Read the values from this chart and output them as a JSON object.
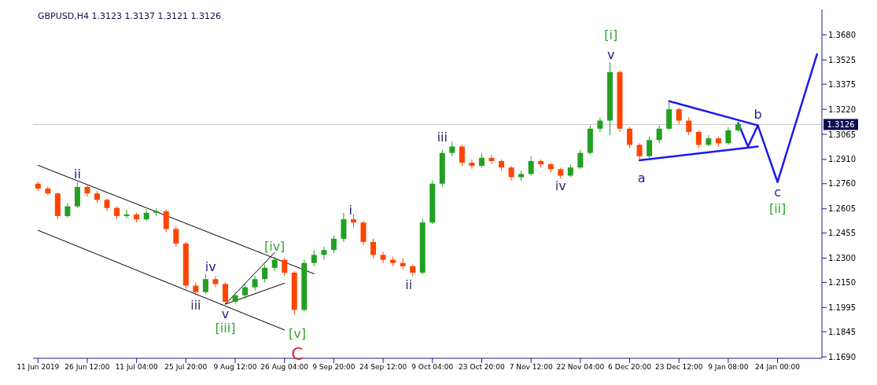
{
  "chart_data": {
    "type": "candlestick",
    "title": "GBPUSD,H4  1.3123 1.3137 1.3121 1.3126",
    "categories": [
      "11 Jun 2019",
      null,
      null,
      null,
      null,
      "26 Jun 12:00",
      null,
      null,
      null,
      null,
      "11 Jul 04:00",
      null,
      null,
      null,
      null,
      "25 Jul 20:00",
      null,
      null,
      null,
      null,
      "9 Aug 12:00",
      null,
      null,
      null,
      null,
      "26 Aug 04:00",
      null,
      null,
      null,
      null,
      "9 Sep 20:00",
      null,
      null,
      null,
      null,
      "24 Sep 12:00",
      null,
      null,
      null,
      null,
      "9 Oct 04:00",
      null,
      null,
      null,
      null,
      "23 Oct 20:00",
      null,
      null,
      null,
      null,
      "7 Nov 12:00",
      null,
      null,
      null,
      null,
      "22 Nov 04:00",
      null,
      null,
      null,
      null,
      "6 Dec 20:00",
      null,
      null,
      null,
      null,
      "23 Dec 12:00",
      null,
      null,
      null,
      null,
      "9 Jan 08:00",
      null,
      null,
      null,
      null,
      "24 Jan 00:00",
      null,
      null,
      null,
      null
    ],
    "ohlc": [
      [
        1.276,
        1.2775,
        1.2715,
        1.273
      ],
      [
        1.273,
        1.2745,
        1.269,
        1.27
      ],
      [
        1.27,
        1.2705,
        1.254,
        1.256
      ],
      [
        1.256,
        1.264,
        1.255,
        1.262
      ],
      [
        1.262,
        1.277,
        1.261,
        1.274
      ],
      [
        1.274,
        1.275,
        1.268,
        1.27
      ],
      [
        1.27,
        1.2715,
        1.264,
        1.266
      ],
      [
        1.266,
        1.267,
        1.259,
        1.261
      ],
      [
        1.261,
        1.262,
        1.254,
        1.256
      ],
      [
        1.256,
        1.26,
        1.2545,
        1.257
      ],
      [
        1.257,
        1.258,
        1.252,
        1.254
      ],
      [
        1.254,
        1.26,
        1.253,
        1.258
      ],
      [
        1.258,
        1.261,
        1.256,
        1.259
      ],
      [
        1.259,
        1.26,
        1.246,
        1.248
      ],
      [
        1.248,
        1.25,
        1.237,
        1.239
      ],
      [
        1.239,
        1.24,
        1.211,
        1.213
      ],
      [
        1.213,
        1.215,
        1.207,
        1.209
      ],
      [
        1.209,
        1.22,
        1.208,
        1.217
      ],
      [
        1.217,
        1.219,
        1.212,
        1.214
      ],
      [
        1.214,
        1.215,
        1.201,
        1.203
      ],
      [
        1.203,
        1.209,
        1.202,
        1.207
      ],
      [
        1.207,
        1.214,
        1.205,
        1.212
      ],
      [
        1.212,
        1.219,
        1.21,
        1.217
      ],
      [
        1.217,
        1.226,
        1.215,
        1.224
      ],
      [
        1.224,
        1.231,
        1.222,
        1.229
      ],
      [
        1.229,
        1.23,
        1.219,
        1.221
      ],
      [
        1.221,
        1.222,
        1.195,
        1.198
      ],
      [
        1.198,
        1.229,
        1.197,
        1.227
      ],
      [
        1.227,
        1.235,
        1.225,
        1.232
      ],
      [
        1.232,
        1.237,
        1.229,
        1.235
      ],
      [
        1.235,
        1.244,
        1.233,
        1.242
      ],
      [
        1.242,
        1.258,
        1.24,
        1.254
      ],
      [
        1.254,
        1.257,
        1.249,
        1.252
      ],
      [
        1.252,
        1.253,
        1.238,
        1.24
      ],
      [
        1.24,
        1.242,
        1.23,
        1.232
      ],
      [
        1.232,
        1.234,
        1.227,
        1.229
      ],
      [
        1.229,
        1.231,
        1.225,
        1.227
      ],
      [
        1.227,
        1.23,
        1.223,
        1.225
      ],
      [
        1.225,
        1.226,
        1.219,
        1.221
      ],
      [
        1.221,
        1.254,
        1.22,
        1.252
      ],
      [
        1.252,
        1.278,
        1.251,
        1.276
      ],
      [
        1.276,
        1.297,
        1.274,
        1.295
      ],
      [
        1.295,
        1.302,
        1.293,
        1.299
      ],
      [
        1.299,
        1.3,
        1.287,
        1.289
      ],
      [
        1.289,
        1.291,
        1.285,
        1.287
      ],
      [
        1.287,
        1.295,
        1.286,
        1.292
      ],
      [
        1.292,
        1.294,
        1.288,
        1.29
      ],
      [
        1.29,
        1.291,
        1.284,
        1.286
      ],
      [
        1.286,
        1.287,
        1.278,
        1.28
      ],
      [
        1.28,
        1.284,
        1.278,
        1.282
      ],
      [
        1.282,
        1.293,
        1.281,
        1.29
      ],
      [
        1.29,
        1.291,
        1.286,
        1.288
      ],
      [
        1.288,
        1.289,
        1.283,
        1.285
      ],
      [
        1.285,
        1.286,
        1.279,
        1.281
      ],
      [
        1.281,
        1.288,
        1.28,
        1.286
      ],
      [
        1.286,
        1.297,
        1.285,
        1.295
      ],
      [
        1.295,
        1.312,
        1.294,
        1.31
      ],
      [
        1.31,
        1.317,
        1.308,
        1.315
      ],
      [
        1.315,
        1.351,
        1.306,
        1.345
      ],
      [
        1.345,
        1.346,
        1.308,
        1.31
      ],
      [
        1.31,
        1.311,
        1.298,
        1.3
      ],
      [
        1.3,
        1.301,
        1.2905,
        1.293
      ],
      [
        1.293,
        1.305,
        1.292,
        1.303
      ],
      [
        1.303,
        1.312,
        1.301,
        1.31
      ],
      [
        1.31,
        1.327,
        1.309,
        1.322
      ],
      [
        1.322,
        1.323,
        1.313,
        1.315
      ],
      [
        1.315,
        1.317,
        1.306,
        1.308
      ],
      [
        1.308,
        1.309,
        1.298,
        1.3
      ],
      [
        1.3,
        1.306,
        1.299,
        1.304
      ],
      [
        1.304,
        1.305,
        1.299,
        1.301
      ],
      [
        1.301,
        1.311,
        1.3,
        1.309
      ],
      [
        1.309,
        1.314,
        1.308,
        1.3126
      ],
      null,
      null,
      null,
      null,
      null,
      null,
      null,
      null
    ],
    "colors": [
      "#ff4500",
      "#ff4500",
      "#ff4500",
      "#22a022",
      "#22a022",
      "#ff4500",
      "#ff4500",
      "#ff4500",
      "#ff4500",
      "#22a022",
      "#ff4500",
      "#22a022",
      "#22a022",
      "#ff4500",
      "#ff4500",
      "#ff4500",
      "#ff4500",
      "#22a022",
      "#ff4500",
      "#ff4500",
      "#22a022",
      "#22a022",
      "#22a022",
      "#22a022",
      "#22a022",
      "#ff4500",
      "#ff4500",
      "#22a022",
      "#22a022",
      "#22a022",
      "#22a022",
      "#22a022",
      "#ff4500",
      "#ff4500",
      "#ff4500",
      "#ff4500",
      "#ff4500",
      "#ff4500",
      "#ff4500",
      "#22a022",
      "#22a022",
      "#22a022",
      "#22a022",
      "#ff4500",
      "#ff4500",
      "#22a022",
      "#ff4500",
      "#ff4500",
      "#ff4500",
      "#22a022",
      "#22a022",
      "#ff4500",
      "#ff4500",
      "#ff4500",
      "#22a022",
      "#22a022",
      "#22a022",
      "#22a022",
      "#22a022",
      "#ff4500",
      "#ff4500",
      "#ff4500",
      "#22a022",
      "#22a022",
      "#22a022",
      "#ff4500",
      "#ff4500",
      "#ff4500",
      "#22a022",
      "#ff4500",
      "#22a022",
      "#22a022",
      null,
      null,
      null,
      null,
      null,
      null,
      null,
      null
    ],
    "series": [
      {
        "type": "line",
        "color": "#000000",
        "values": [
          1.2874,
          null,
          null,
          null,
          null,
          null,
          null,
          null,
          null,
          null,
          null,
          null,
          null,
          null,
          null,
          null,
          null,
          null,
          null,
          null,
          null,
          null,
          null,
          null,
          null,
          null,
          null,
          null,
          1.2203,
          null,
          null,
          null,
          null,
          null,
          null,
          null,
          null,
          null,
          null,
          null,
          null,
          null,
          null,
          null,
          null,
          null,
          null,
          null,
          null,
          null,
          null,
          null,
          null,
          null,
          null,
          null,
          null,
          null,
          null,
          null,
          null,
          null,
          null,
          null,
          null,
          null,
          null,
          null,
          null,
          null,
          null,
          null,
          null,
          null,
          null,
          null,
          null,
          null,
          null,
          null
        ]
      },
      {
        "type": "line",
        "color": "#000000",
        "values": [
          1.2472,
          null,
          null,
          null,
          null,
          null,
          null,
          null,
          null,
          null,
          null,
          null,
          null,
          null,
          null,
          null,
          null,
          null,
          null,
          null,
          null,
          null,
          null,
          null,
          null,
          1.1856,
          null,
          null,
          null,
          null,
          null,
          null,
          null,
          null,
          null,
          null,
          null,
          null,
          null,
          null,
          null,
          null,
          null,
          null,
          null,
          null,
          null,
          null,
          null,
          null,
          null,
          null,
          null,
          null,
          null,
          null,
          null,
          null,
          null,
          null,
          null,
          null,
          null,
          null,
          null,
          null,
          null,
          null,
          null,
          null,
          null,
          null,
          null,
          null,
          null,
          null,
          null,
          null,
          null,
          null
        ]
      },
      {
        "type": "line",
        "color": "#000000",
        "values": [
          null,
          null,
          null,
          null,
          null,
          null,
          null,
          null,
          null,
          null,
          null,
          null,
          null,
          null,
          null,
          null,
          null,
          null,
          null,
          1.2015,
          null,
          null,
          null,
          null,
          1.2335,
          null,
          null,
          null,
          null,
          null,
          null,
          null,
          null,
          null,
          null,
          null,
          null,
          null,
          null,
          null,
          null,
          null,
          null,
          null,
          null,
          null,
          null,
          null,
          null,
          null,
          null,
          null,
          null,
          null,
          null,
          null,
          null,
          null,
          null,
          null,
          null,
          null,
          null,
          null,
          null,
          null,
          null,
          null,
          null,
          null,
          null,
          null,
          null,
          null,
          null,
          null,
          null,
          null,
          null,
          null
        ]
      },
      {
        "type": "line",
        "color": "#000000",
        "values": [
          null,
          null,
          null,
          null,
          null,
          null,
          null,
          null,
          null,
          null,
          null,
          null,
          null,
          null,
          null,
          null,
          null,
          null,
          null,
          1.2015,
          null,
          null,
          null,
          null,
          null,
          1.2145,
          null,
          null,
          null,
          null,
          null,
          null,
          null,
          null,
          null,
          null,
          null,
          null,
          null,
          null,
          null,
          null,
          null,
          null,
          null,
          null,
          null,
          null,
          null,
          null,
          null,
          null,
          null,
          null,
          null,
          null,
          null,
          null,
          null,
          null,
          null,
          null,
          null,
          null,
          null,
          null,
          null,
          null,
          null,
          null,
          null,
          null,
          null,
          null,
          null,
          null,
          null,
          null,
          null,
          null
        ]
      },
      {
        "type": "line",
        "color": "#1a1aee",
        "values": [
          null,
          null,
          null,
          null,
          null,
          null,
          null,
          null,
          null,
          null,
          null,
          null,
          null,
          null,
          null,
          null,
          null,
          null,
          null,
          null,
          null,
          null,
          null,
          null,
          null,
          null,
          null,
          null,
          null,
          null,
          null,
          null,
          null,
          null,
          null,
          null,
          null,
          null,
          null,
          null,
          null,
          null,
          null,
          null,
          null,
          null,
          null,
          null,
          null,
          null,
          null,
          null,
          null,
          null,
          null,
          null,
          null,
          null,
          null,
          null,
          null,
          null,
          null,
          null,
          1.327,
          null,
          null,
          null,
          null,
          null,
          null,
          null,
          null,
          1.312,
          null,
          null,
          null,
          null,
          null,
          null
        ]
      },
      {
        "type": "line",
        "color": "#1a1aee",
        "values": [
          null,
          null,
          null,
          null,
          null,
          null,
          null,
          null,
          null,
          null,
          null,
          null,
          null,
          null,
          null,
          null,
          null,
          null,
          null,
          null,
          null,
          null,
          null,
          null,
          null,
          null,
          null,
          null,
          null,
          null,
          null,
          null,
          null,
          null,
          null,
          null,
          null,
          null,
          null,
          null,
          null,
          null,
          null,
          null,
          null,
          null,
          null,
          null,
          null,
          null,
          null,
          null,
          null,
          null,
          null,
          null,
          null,
          null,
          null,
          null,
          null,
          1.2905,
          null,
          null,
          null,
          null,
          null,
          null,
          null,
          null,
          null,
          null,
          null,
          1.299,
          null,
          null,
          null,
          null,
          null,
          null
        ]
      },
      {
        "type": "line",
        "color": "#1a1aee",
        "values": [
          null,
          null,
          null,
          null,
          null,
          null,
          null,
          null,
          null,
          null,
          null,
          null,
          null,
          null,
          null,
          null,
          null,
          null,
          null,
          null,
          null,
          null,
          null,
          null,
          null,
          null,
          null,
          null,
          null,
          null,
          null,
          null,
          null,
          null,
          null,
          null,
          null,
          null,
          null,
          null,
          null,
          null,
          null,
          null,
          null,
          null,
          null,
          null,
          null,
          null,
          null,
          null,
          null,
          null,
          null,
          null,
          null,
          null,
          null,
          null,
          null,
          null,
          null,
          null,
          null,
          null,
          null,
          null,
          null,
          null,
          null,
          1.3135,
          1.299,
          1.312,
          null,
          1.277,
          null,
          null,
          null,
          1.356
        ]
      }
    ],
    "annotations": [
      "ii",
      "iii",
      "iv",
      "v",
      "[iii]",
      "[iv]",
      "[v]",
      "C",
      "i",
      "ii",
      "iii",
      "iv",
      "v",
      "[i]",
      "a",
      "b",
      "c",
      "[ii]"
    ],
    "ref_lines": [
      {
        "axis": "y",
        "value": 1.3126,
        "label": "1.3126",
        "color": "#c8c8c8"
      }
    ],
    "ylim": [
      1.1681,
      1.3837
    ],
    "yticks": [
      {
        "value": 1.169,
        "label": "1.1690"
      },
      {
        "value": 1.1845,
        "label": "1.1845"
      },
      {
        "value": 1.1995,
        "label": "1.1995"
      },
      {
        "value": 1.215,
        "label": "1.2150"
      },
      {
        "value": 1.23,
        "label": "1.2300"
      },
      {
        "value": 1.2455,
        "label": "1.2455"
      },
      {
        "value": 1.2605,
        "label": "1.2605"
      },
      {
        "value": 1.276,
        "label": "1.2760"
      },
      {
        "value": 1.291,
        "label": "1.2910"
      },
      {
        "value": 1.3065,
        "label": "1.3065"
      },
      {
        "value": 1.322,
        "label": "1.3220"
      },
      {
        "value": 1.3375,
        "label": "1.3375"
      },
      {
        "value": 1.3525,
        "label": "1.3525"
      },
      {
        "value": 1.368,
        "label": "1.3680"
      }
    ]
  }
}
